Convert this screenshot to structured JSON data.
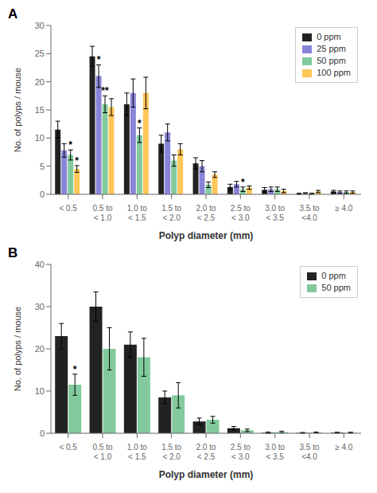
{
  "chart_data": [
    {
      "type": "bar",
      "title": "A",
      "xlabel": "Polyp diameter (mm)",
      "ylabel": "No. of polyps / mouse",
      "categories": [
        "< 0.5",
        "0.5 to\n< 1.0",
        "1.0 to\n< 1.5",
        "1.5 to\n< 2.0",
        "2.0 to\n< 2.5",
        "2.5 to\n< 3.0",
        "3.0 to\n< 3.5",
        "3.5 to\n<4.0",
        "≥ 4.0"
      ],
      "series": [
        {
          "name": "0 ppm",
          "color": "#222222",
          "values": [
            11.5,
            24.5,
            16.0,
            9.0,
            5.5,
            1.3,
            0.8,
            0.1,
            0.5
          ],
          "errors": [
            1.5,
            1.8,
            2.0,
            1.5,
            1.0,
            0.5,
            0.4,
            0.1,
            0.2
          ]
        },
        {
          "name": "25 ppm",
          "color": "#8884d8",
          "values": [
            7.8,
            21.0,
            18.0,
            11.0,
            5.0,
            1.8,
            0.9,
            0.2,
            0.4
          ],
          "errors": [
            1.2,
            2.0,
            2.5,
            1.5,
            1.0,
            0.5,
            0.4,
            0.1,
            0.2
          ]
        },
        {
          "name": "50 ppm",
          "color": "#82ca9d",
          "values": [
            7.0,
            16.0,
            10.5,
            6.0,
            1.7,
            0.9,
            0.9,
            0.1,
            0.4
          ],
          "errors": [
            0.9,
            1.5,
            1.3,
            1.0,
            0.5,
            0.4,
            0.4,
            0.1,
            0.2
          ]
        },
        {
          "name": "100 ppm",
          "color": "#ffc658",
          "values": [
            4.5,
            15.5,
            18.0,
            8.0,
            3.5,
            1.2,
            0.6,
            0.5,
            0.4
          ],
          "errors": [
            0.6,
            1.5,
            2.8,
            1.0,
            0.5,
            0.3,
            0.3,
            0.2,
            0.2
          ]
        }
      ],
      "annotations": [
        {
          "category": "< 0.5",
          "series": "50 ppm",
          "text": "*"
        },
        {
          "category": "< 0.5",
          "series": "100 ppm",
          "text": "*"
        },
        {
          "category": "0.5 to\n< 1.0",
          "series": "25 ppm",
          "text": "*"
        },
        {
          "category": "1.0 to\n< 1.5",
          "series": "50 ppm",
          "text": "*"
        },
        {
          "category": "2.5 to\n< 3.0",
          "series": "50 ppm",
          "text": "*"
        },
        {
          "category": "0.5 to\n< 1.0",
          "series": "50 ppm",
          "text": "**"
        }
      ],
      "ylim": [
        0,
        30
      ],
      "yticks": [
        0,
        5,
        10,
        15,
        20,
        25,
        30
      ],
      "grid": false,
      "legend": "upper right"
    },
    {
      "type": "bar",
      "title": "B",
      "xlabel": "Polyp diameter (mm)",
      "ylabel": "No. of polyps / mouse",
      "categories": [
        "< 0.5",
        "0.5 to\n< 1.0",
        "1.0 to\n< 1.5",
        "1.5 to\n< 2.0",
        "2.0 to\n< 2.5",
        "2.5 to\n< 3.0",
        "3.0 to\n< 3.5",
        "3.5 to\n<4.0",
        "≥ 4.0"
      ],
      "series": [
        {
          "name": "0 ppm",
          "color": "#222222",
          "values": [
            23.0,
            30.0,
            21.0,
            8.5,
            2.8,
            1.2,
            0.15,
            0.1,
            0.15
          ],
          "errors": [
            3.0,
            3.5,
            3.0,
            1.5,
            0.8,
            0.4,
            0.15,
            0.1,
            0.1
          ]
        },
        {
          "name": "50 ppm",
          "color": "#82ca9d",
          "values": [
            11.5,
            20.0,
            18.0,
            9.0,
            3.2,
            0.7,
            0.3,
            0.2,
            0.15
          ],
          "errors": [
            2.5,
            5.0,
            4.5,
            3.0,
            0.8,
            0.3,
            0.2,
            0.1,
            0.1
          ]
        }
      ],
      "annotations": [
        {
          "category": "< 0.5",
          "series": "50 ppm",
          "text": "*"
        }
      ],
      "ylim": [
        0,
        40
      ],
      "yticks": [
        0,
        10,
        20,
        30,
        40
      ],
      "grid": false,
      "legend": "upper right"
    }
  ]
}
